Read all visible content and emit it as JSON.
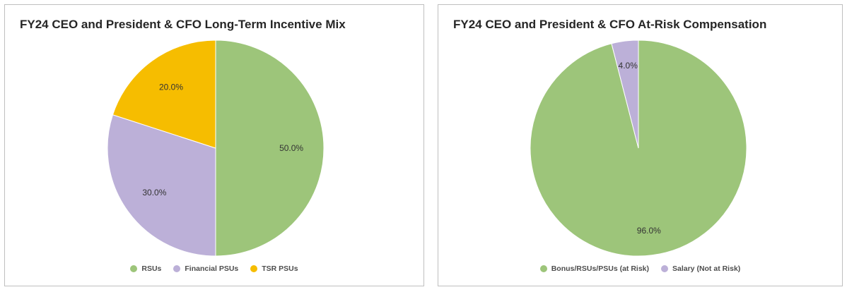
{
  "chart_data": [
    {
      "type": "pie",
      "title": "FY24 CEO and President & CFO Long-Term Incentive Mix",
      "categories": [
        "RSUs",
        "Financial PSUs",
        "TSR PSUs"
      ],
      "values": [
        50.0,
        30.0,
        20.0
      ],
      "labels": [
        "50.0%",
        "30.0%",
        "20.0%"
      ],
      "colors": [
        "#9dc57a",
        "#bcb0d8",
        "#f6bd00"
      ],
      "legend": "bottom"
    },
    {
      "type": "pie",
      "title": "FY24 CEO and President & CFO At-Risk Compensation",
      "categories": [
        "Bonus/RSUs/PSUs (at Risk)",
        "Salary (Not at Risk)"
      ],
      "values": [
        96.0,
        4.0
      ],
      "labels": [
        "96.0%",
        "4.0%"
      ],
      "colors": [
        "#9dc57a",
        "#bcb0d8"
      ],
      "legend": "bottom"
    }
  ]
}
